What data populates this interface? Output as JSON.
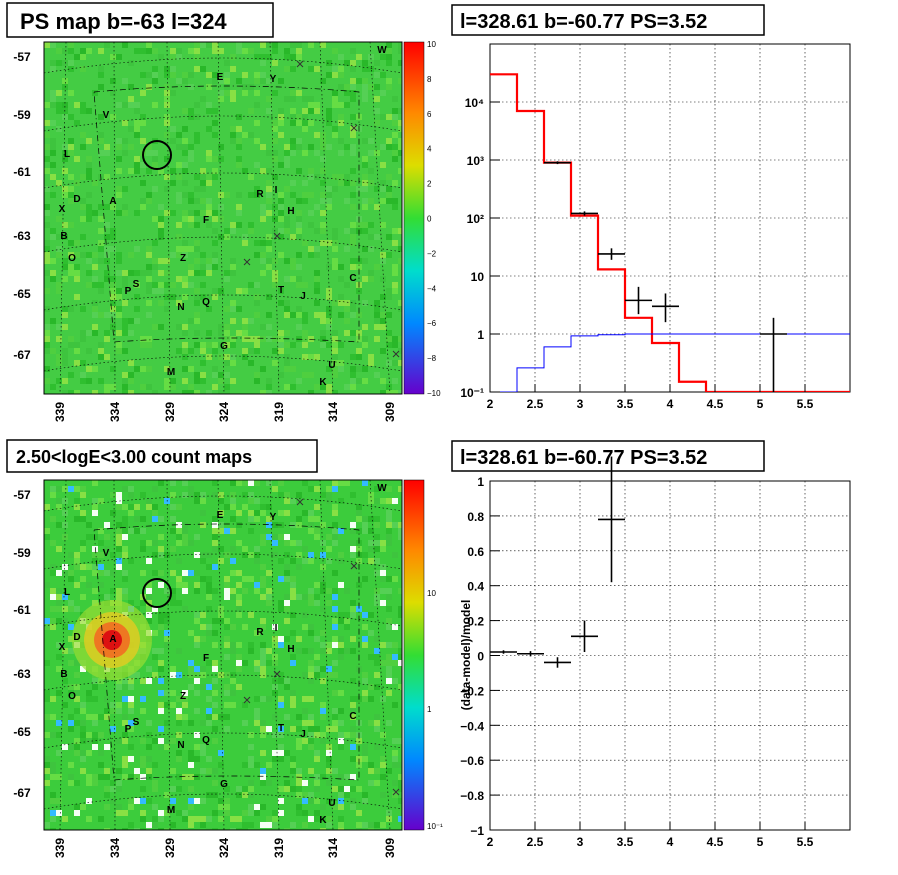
{
  "panels": {
    "tl_title": "PS map b=-63 l=324",
    "tr_title": "l=328.61 b=-60.77 PS=3.52",
    "bl_title": "2.50<logE<3.00 count maps",
    "br_title": "l=328.61 b=-60.77 PS=3.52"
  },
  "maps": {
    "lat_labels": [
      "-57",
      "-59",
      "-61",
      "-63",
      "-65",
      "-67"
    ],
    "lon_labels": [
      "339",
      "334",
      "329",
      "324",
      "319",
      "314",
      "309"
    ],
    "sources": [
      "W",
      "E",
      "Y",
      "V",
      "L",
      "R",
      "I",
      "X",
      "D",
      "A",
      "H",
      "F",
      "B",
      "O",
      "Z",
      "C",
      "P",
      "S",
      "T",
      "J",
      "N",
      "Q",
      "G",
      "U",
      "M",
      "K"
    ],
    "ps_scale_labels": [
      "10",
      "8",
      "6",
      "4",
      "2",
      "0",
      "−2",
      "−4",
      "−6",
      "−8",
      "−10"
    ],
    "count_scale_labels": [
      "10",
      "1",
      "10⁻¹"
    ]
  },
  "colors": {
    "model_red": "#ff0000",
    "background_blue": "#0000ff",
    "data_black": "#000000",
    "map_green": "#33cc33"
  },
  "chart_data": [
    {
      "type": "line",
      "title": "l=328.61 b=-60.77 PS=3.52",
      "xlabel": "",
      "ylabel": "",
      "xlim": [
        2,
        6
      ],
      "ylim": [
        0.1,
        100000
      ],
      "yscale": "log",
      "x_ticks": [
        "2",
        "2.5",
        "3",
        "3.5",
        "4",
        "4.5",
        "5",
        "5.5"
      ],
      "y_ticks": [
        "10⁻¹",
        "1",
        "10",
        "10²",
        "10³",
        "10⁴"
      ],
      "grid": true,
      "series": [
        {
          "kind": "step",
          "edges": [
            2.0,
            2.3,
            2.6,
            2.9,
            3.2,
            3.5,
            3.8,
            4.1,
            4.4,
            4.7,
            5.0,
            5.3,
            5.6,
            6.0
          ],
          "values": [
            30000,
            7000,
            900,
            110,
            13,
            1.9,
            0.7,
            0.15,
            0.1,
            0.1,
            0.1,
            0.1,
            0.1
          ]
        },
        {
          "kind": "step",
          "edges": [
            2.0,
            2.3,
            2.6,
            2.9,
            3.2,
            3.5,
            3.8,
            4.1,
            4.4,
            4.7,
            5.0,
            5.3,
            5.6,
            6.0
          ],
          "values": [
            0.1,
            0.26,
            0.6,
            0.93,
            0.97,
            1.0,
            1.0,
            1.0,
            1.0,
            1.0,
            1.0,
            1.0,
            1.0
          ]
        },
        {
          "kind": "points",
          "points": [
            {
              "x": 2.75,
              "y": 900,
              "xerr": 0.15,
              "ylo": 850,
              "yhi": 950
            },
            {
              "x": 3.05,
              "y": 120,
              "xerr": 0.15,
              "ylo": 110,
              "yhi": 130
            },
            {
              "x": 3.35,
              "y": 24,
              "xerr": 0.15,
              "ylo": 19,
              "yhi": 30
            },
            {
              "x": 3.65,
              "y": 3.8,
              "xerr": 0.15,
              "ylo": 2.2,
              "yhi": 6.5
            },
            {
              "x": 3.95,
              "y": 3.0,
              "xerr": 0.15,
              "ylo": 1.6,
              "yhi": 5.0
            },
            {
              "x": 5.15,
              "y": 1.0,
              "xerr": 0.15,
              "ylo": 0.1,
              "yhi": 1.9
            }
          ]
        }
      ]
    },
    {
      "type": "scatter",
      "title": "l=328.61 b=-60.77 PS=3.52",
      "xlabel": "",
      "ylabel": "(data-model)/model",
      "xlim": [
        2,
        6
      ],
      "ylim": [
        -1,
        1
      ],
      "x_ticks": [
        "2",
        "2.5",
        "3",
        "3.5",
        "4",
        "4.5",
        "5",
        "5.5"
      ],
      "y_ticks": [
        "−1",
        "−0.8",
        "−0.6",
        "−0.4",
        "−0.2",
        "0",
        "0.2",
        "0.4",
        "0.6",
        "0.8",
        "1"
      ],
      "grid": true,
      "points": [
        {
          "x": 2.15,
          "y": 0.02,
          "xerr": 0.15,
          "yerr": 0.01
        },
        {
          "x": 2.45,
          "y": 0.01,
          "xerr": 0.15,
          "yerr": 0.015
        },
        {
          "x": 2.75,
          "y": -0.04,
          "xerr": 0.15,
          "yerr": 0.03
        },
        {
          "x": 3.05,
          "y": 0.11,
          "xerr": 0.15,
          "yerr": 0.09
        },
        {
          "x": 3.35,
          "y": 0.78,
          "xerr": 0.15,
          "yerr": 0.36
        }
      ]
    }
  ]
}
